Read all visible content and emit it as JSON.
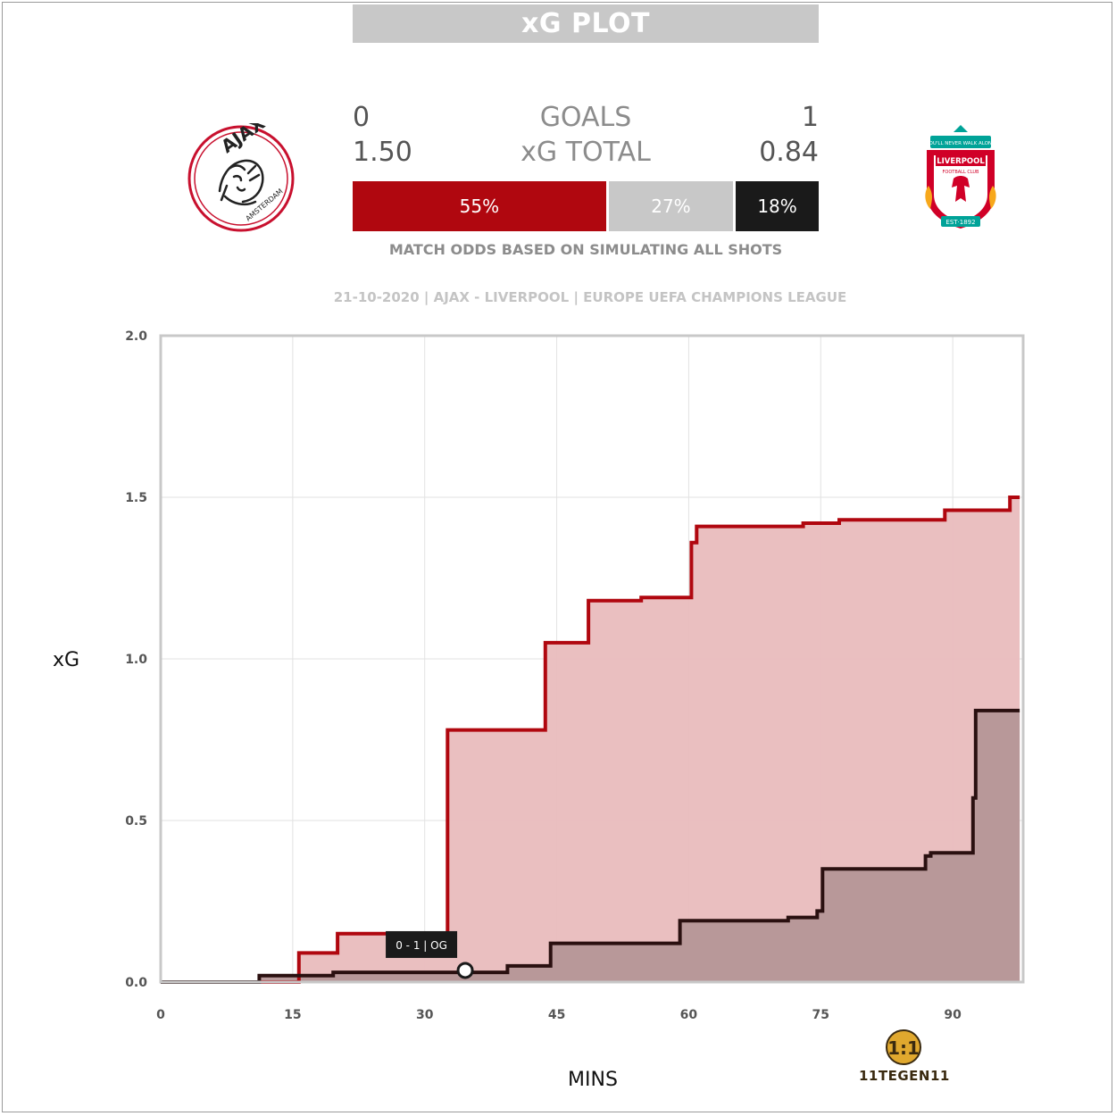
{
  "header": {
    "title": "xG PLOT"
  },
  "teams": {
    "home": {
      "name": "AJAX",
      "goals": "0",
      "xg_total": "1.50",
      "color": "#b0070f"
    },
    "away": {
      "name": "LIVERPOOL",
      "goals": "1",
      "xg_total": "0.84",
      "color": "#1a1a1a"
    }
  },
  "labels": {
    "goals": "GOALS",
    "xg_total": "xG TOTAL"
  },
  "odds": {
    "home_win": "55%",
    "draw": "27%",
    "away_win": "18%",
    "home_value": 55,
    "draw_value": 27,
    "away_value": 18,
    "home_color": "#b0070f",
    "draw_color": "#c8c8c8",
    "away_color": "#1a1a1a",
    "caption": "MATCH ODDS BASED ON SIMULATING ALL SHOTS"
  },
  "match_info": "21-10-2020 | AJAX - LIVERPOOL | EUROPE UEFA CHAMPIONS LEAGUE",
  "logos": {
    "home_text": "AJAX",
    "home_subtext": "AMSTERDAM",
    "away_banner": "YOU'LL NEVER WALK ALONE",
    "away_name": "LIVERPOOL",
    "away_sub": "FOOTBALL CLUB",
    "away_est": "EST·1892"
  },
  "chart_data": {
    "type": "line",
    "step": true,
    "xlabel": "MINS",
    "ylabel": "xG",
    "xlim": [
      0,
      98
    ],
    "ylim": [
      0,
      2.0
    ],
    "xticks": [
      0,
      15,
      30,
      45,
      60,
      75,
      90
    ],
    "yticks": [
      0.0,
      0.5,
      1.0,
      1.5,
      2.0
    ],
    "ytick_labels": [
      "0.0",
      "0.5",
      "1.0",
      "1.5",
      "2.0"
    ],
    "grid": true,
    "series": [
      {
        "team": "home",
        "color": "#b0070f",
        "fill": "#e9bcbd",
        "points": [
          [
            0,
            0
          ],
          [
            15.7,
            0
          ],
          [
            15.7,
            0.09
          ],
          [
            20.1,
            0.09
          ],
          [
            20.1,
            0.15
          ],
          [
            32.6,
            0.15
          ],
          [
            32.6,
            0.78
          ],
          [
            43.7,
            0.78
          ],
          [
            43.7,
            1.05
          ],
          [
            48.6,
            1.05
          ],
          [
            48.6,
            1.18
          ],
          [
            54.6,
            1.18
          ],
          [
            54.6,
            1.19
          ],
          [
            60.3,
            1.19
          ],
          [
            60.3,
            1.36
          ],
          [
            60.9,
            1.36
          ],
          [
            60.9,
            1.41
          ],
          [
            73.0,
            1.41
          ],
          [
            73.0,
            1.42
          ],
          [
            77.1,
            1.42
          ],
          [
            77.1,
            1.43
          ],
          [
            89.1,
            1.43
          ],
          [
            89.1,
            1.46
          ],
          [
            96.5,
            1.46
          ],
          [
            96.5,
            1.5
          ],
          [
            97.6,
            1.5
          ]
        ]
      },
      {
        "team": "away",
        "color": "#2a1010",
        "fill": "#b59697",
        "points": [
          [
            0,
            0
          ],
          [
            11.2,
            0
          ],
          [
            11.2,
            0.02
          ],
          [
            19.6,
            0.02
          ],
          [
            19.6,
            0.03
          ],
          [
            39.4,
            0.03
          ],
          [
            39.4,
            0.05
          ],
          [
            44.3,
            0.05
          ],
          [
            44.3,
            0.12
          ],
          [
            59.0,
            0.12
          ],
          [
            59.0,
            0.19
          ],
          [
            71.3,
            0.19
          ],
          [
            71.3,
            0.2
          ],
          [
            74.6,
            0.2
          ],
          [
            74.6,
            0.22
          ],
          [
            75.2,
            0.22
          ],
          [
            75.2,
            0.35
          ],
          [
            86.9,
            0.35
          ],
          [
            86.9,
            0.39
          ],
          [
            87.5,
            0.39
          ],
          [
            87.5,
            0.4
          ],
          [
            92.3,
            0.4
          ],
          [
            92.3,
            0.57
          ],
          [
            92.6,
            0.57
          ],
          [
            92.6,
            0.84
          ],
          [
            97.6,
            0.84
          ]
        ]
      }
    ],
    "annotations": [
      {
        "x": 34.6,
        "y": 0.025,
        "label": "0 - 1 | OG"
      }
    ]
  },
  "brand": {
    "mark": "1:1",
    "text": "11TEGEN11"
  }
}
